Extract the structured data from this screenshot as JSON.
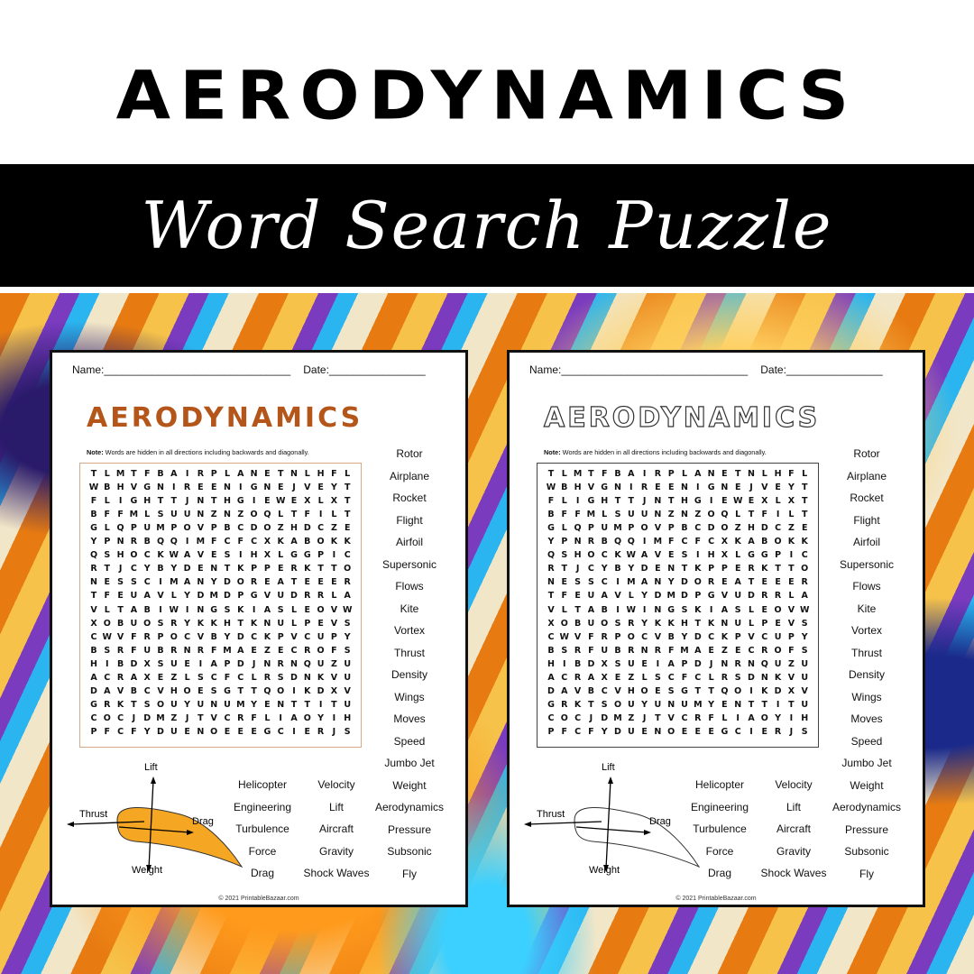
{
  "header": {
    "title": "AERODYNAMICS",
    "subtitle": "Word Search Puzzle"
  },
  "worksheet": {
    "name_label": "Name:_______________________________",
    "date_label": "Date:________________",
    "title": "AERODYNAMICS",
    "note_bold": "Note:",
    "note_text": " Words are hidden in all directions including backwards and diagonally.",
    "grid": [
      "TLMTFBAIRPLANETNLHFL",
      "WBHVGNIREENIGNEJVEYT",
      "FLIGHTTJNTHGIEWEXLXT",
      "BFFMLSUUNZNZOQLTFILT",
      "GLQPUMPOVPBCDOZHDCZE",
      "YPNRBQQIMFCFCXKABOKK",
      "QSHOCKWAVESIHXLGGPIC",
      "RTJCYBYDENTKPPERKTTO",
      "NESSCIMANYDOREATEEER",
      "TFEUAVLYDMDPGVUDRRLA",
      "VLTABIWINGSKIASLEOVW",
      "XOBUOSRYKKHTKNULPEVS",
      "CWVFRPOCVBYDCKPVCUPY",
      "BSRFUBRNRFMAEZECROFS",
      "HIBDXSUEIAPDJNRNQUZU",
      "ACRAXEZLSCFCLRSDNKVU",
      "DAVBCVHOESGTTQOIKDXV",
      "GRKTSOUYUNUMYENTTITU",
      "COCJDMZJTVCRFLIAOYIH",
      "PFCFYDUENOEEEGCIERJS"
    ],
    "words_right": [
      "Rotor",
      "Airplane",
      "Rocket",
      "Flight",
      "Airfoil",
      "Supersonic",
      "Flows",
      "Kite",
      "Vortex",
      "Thrust",
      "Density",
      "Wings",
      "Moves",
      "Speed",
      "Jumbo Jet",
      "Weight",
      "Aerodynamics",
      "Pressure",
      "Subsonic",
      "Fly"
    ],
    "words_col1": [
      "Helicopter",
      "Engineering",
      "Turbulence",
      "Force",
      "Drag"
    ],
    "words_col2": [
      "Velocity",
      "Lift",
      "Aircraft",
      "Gravity",
      "Shock Waves"
    ],
    "diagram_labels": {
      "lift": "Lift",
      "thrust": "Thrust",
      "drag": "Drag",
      "weight": "Weight"
    },
    "copyright": "© 2021 PrintableBazaar.com",
    "accent": "#b4561a",
    "airfoil_fill": "#f5a623"
  }
}
